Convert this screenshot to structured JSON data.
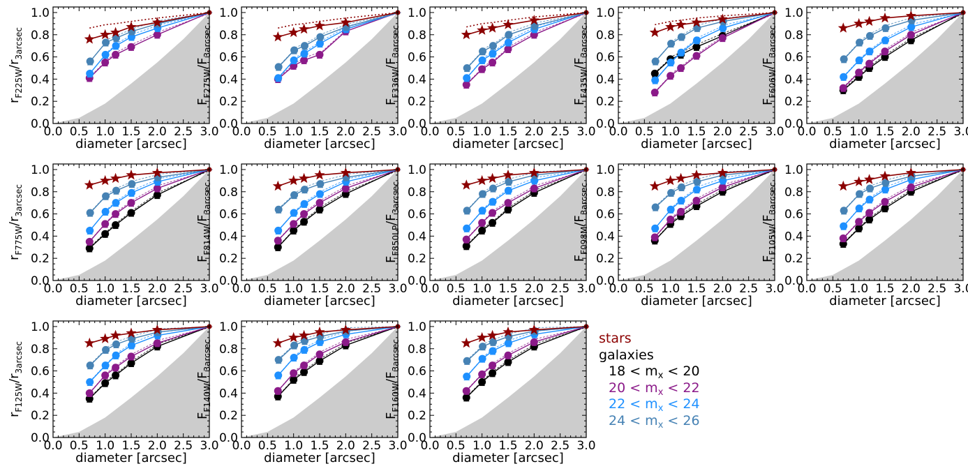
{
  "chart_data": {
    "type": "line",
    "x": [
      0.7,
      1.0,
      1.2,
      1.5,
      2.0,
      3.0
    ],
    "xlim": [
      0,
      3
    ],
    "ylim": [
      0,
      1.05
    ],
    "xticks": [
      "0.0",
      "0.5",
      "1.0",
      "1.5",
      "2.0",
      "2.5",
      "3.0"
    ],
    "yticks": [
      "0.0",
      "0.2",
      "0.4",
      "0.6",
      "0.8",
      "1.0"
    ],
    "xlabel": "diameter [arcsec]",
    "shade": {
      "x": [
        0,
        0.5,
        1.0,
        1.5,
        2.0,
        2.5,
        3.0
      ],
      "y": [
        0,
        0.05,
        0.18,
        0.36,
        0.55,
        0.76,
        1.0
      ]
    },
    "series_colors": {
      "stars": "#8b0000",
      "m18_20": "#000000",
      "m20_22": "#8b1a89",
      "m22_24": "#1e90ff",
      "m24_26": "#4682b4"
    },
    "panels": [
      {
        "filter": "F225W",
        "ylabel_prefix": "r",
        "ylabel_sub": "F225W",
        "ylabel_mid": "/r",
        "ylabel_sub2": "3arcsec",
        "stars": [
          0.76,
          0.8,
          0.82,
          0.87,
          0.91,
          1.0
        ],
        "stars_dotted": [
          0.86,
          0.89,
          0.9,
          0.92,
          0.95,
          1.0
        ],
        "m18_20": null,
        "m20_22": [
          0.41,
          0.55,
          0.62,
          0.69,
          0.8,
          1.0
        ],
        "m22_24": [
          0.45,
          0.62,
          0.7,
          0.78,
          0.86,
          1.0
        ],
        "m24_26": [
          0.56,
          0.73,
          0.77,
          0.83,
          0.9,
          1.0
        ]
      },
      {
        "filter": "F275W",
        "ylabel_prefix": "F",
        "ylabel_sub": "F275W",
        "ylabel_mid": "/F",
        "ylabel_sub2": "3arcsec",
        "stars": [
          0.78,
          0.82,
          0.85,
          0.88,
          0.91,
          1.0
        ],
        "stars_dotted": [
          0.86,
          0.89,
          0.9,
          0.92,
          0.95,
          1.0
        ],
        "m18_20": null,
        "m20_22": [
          0.4,
          0.52,
          0.57,
          0.62,
          0.83,
          1.0
        ],
        "m22_24": [
          0.41,
          0.57,
          0.63,
          0.72,
          0.85,
          1.0
        ],
        "m24_26": [
          0.51,
          0.66,
          0.7,
          0.78,
          0.87,
          1.0
        ]
      },
      {
        "filter": "F336W",
        "ylabel_prefix": "F",
        "ylabel_sub": "F336W",
        "ylabel_mid": "/F",
        "ylabel_sub2": "3arcsec",
        "stars": [
          0.8,
          0.84,
          0.86,
          0.89,
          0.93,
          1.0
        ],
        "stars_dotted": [
          0.87,
          0.9,
          0.91,
          0.93,
          0.96,
          1.0
        ],
        "m18_20": null,
        "m20_22": [
          0.35,
          0.49,
          0.55,
          0.67,
          0.8,
          1.0
        ],
        "m22_24": [
          0.41,
          0.57,
          0.63,
          0.73,
          0.85,
          1.0
        ],
        "m24_26": [
          0.5,
          0.65,
          0.7,
          0.8,
          0.88,
          1.0
        ]
      },
      {
        "filter": "F435W",
        "ylabel_prefix": "F",
        "ylabel_sub": "F435W",
        "ylabel_mid": "/F",
        "ylabel_sub2": "3arcsec",
        "stars": [
          0.82,
          0.87,
          0.89,
          0.91,
          0.94,
          1.0
        ],
        "stars_dotted": [
          0.89,
          0.92,
          0.93,
          0.95,
          0.97,
          1.0
        ],
        "m18_20": [
          0.45,
          0.58,
          0.62,
          0.69,
          0.79,
          1.0
        ],
        "m20_22": [
          0.28,
          0.43,
          0.5,
          0.61,
          0.77,
          1.0
        ],
        "m22_24": [
          0.39,
          0.55,
          0.64,
          0.75,
          0.86,
          1.0
        ],
        "m24_26": [
          0.56,
          0.72,
          0.78,
          0.86,
          0.92,
          1.0
        ]
      },
      {
        "filter": "F606W",
        "ylabel_prefix": "F",
        "ylabel_sub": "F606W",
        "ylabel_mid": "/F",
        "ylabel_sub2": "3arcsec",
        "stars": [
          0.86,
          0.9,
          0.92,
          0.95,
          0.97,
          1.0
        ],
        "stars_dotted": null,
        "m18_20": [
          0.3,
          0.42,
          0.5,
          0.6,
          0.75,
          1.0
        ],
        "m20_22": [
          0.32,
          0.46,
          0.54,
          0.65,
          0.8,
          1.0
        ],
        "m22_24": [
          0.42,
          0.57,
          0.65,
          0.75,
          0.87,
          1.0
        ],
        "m24_26": [
          0.58,
          0.73,
          0.79,
          0.86,
          0.93,
          1.0
        ]
      },
      {
        "filter": "F775W",
        "ylabel_prefix": "r",
        "ylabel_sub": "F775W",
        "ylabel_mid": "/r",
        "ylabel_sub2": "3arcsec",
        "stars": [
          0.86,
          0.9,
          0.92,
          0.95,
          0.97,
          1.0
        ],
        "stars_dotted": null,
        "m18_20": [
          0.29,
          0.42,
          0.5,
          0.61,
          0.77,
          1.0
        ],
        "m20_22": [
          0.35,
          0.51,
          0.6,
          0.7,
          0.83,
          1.0
        ],
        "m22_24": [
          0.45,
          0.62,
          0.7,
          0.79,
          0.89,
          1.0
        ],
        "m24_26": [
          0.61,
          0.76,
          0.81,
          0.87,
          0.93,
          1.0
        ]
      },
      {
        "filter": "F814W",
        "ylabel_prefix": "F",
        "ylabel_sub": "F814W",
        "ylabel_mid": "/F",
        "ylabel_sub2": "3arcsec",
        "stars": [
          0.85,
          0.9,
          0.92,
          0.95,
          0.97,
          1.0
        ],
        "stars_dotted": null,
        "m18_20": [
          0.3,
          0.45,
          0.53,
          0.64,
          0.78,
          1.0
        ],
        "m20_22": [
          0.36,
          0.51,
          0.6,
          0.7,
          0.83,
          1.0
        ],
        "m22_24": [
          0.45,
          0.61,
          0.69,
          0.78,
          0.89,
          1.0
        ],
        "m24_26": [
          0.64,
          0.77,
          0.82,
          0.87,
          0.93,
          1.0
        ]
      },
      {
        "filter": "F850LP",
        "ylabel_prefix": "F",
        "ylabel_sub": "F850LP",
        "ylabel_mid": "/F",
        "ylabel_sub2": "3arcsec",
        "stars": [
          0.86,
          0.9,
          0.92,
          0.95,
          0.97,
          1.0
        ],
        "stars_dotted": null,
        "m18_20": [
          0.31,
          0.45,
          0.52,
          0.64,
          0.79,
          1.0
        ],
        "m20_22": [
          0.37,
          0.52,
          0.61,
          0.7,
          0.83,
          1.0
        ],
        "m22_24": [
          0.47,
          0.63,
          0.71,
          0.81,
          0.9,
          1.0
        ],
        "m24_26": [
          0.63,
          0.78,
          0.83,
          0.89,
          0.95,
          1.0
        ]
      },
      {
        "filter": "F098M",
        "ylabel_prefix": "F",
        "ylabel_sub": "F098M",
        "ylabel_mid": "/F",
        "ylabel_sub2": "3arcsec",
        "stars": [
          0.85,
          0.9,
          0.92,
          0.95,
          0.97,
          1.0
        ],
        "stars_dotted": null,
        "m18_20": [
          0.36,
          0.51,
          0.58,
          0.67,
          0.8,
          1.0
        ],
        "m20_22": [
          0.39,
          0.55,
          0.62,
          0.72,
          0.84,
          1.0
        ],
        "m22_24": [
          0.47,
          0.64,
          0.72,
          0.82,
          0.9,
          1.0
        ],
        "m24_26": [
          0.66,
          0.79,
          0.84,
          0.89,
          0.95,
          1.0
        ]
      },
      {
        "filter": "F105W",
        "ylabel_prefix": "F",
        "ylabel_sub": "F105W",
        "ylabel_mid": "/F",
        "ylabel_sub2": "3arcsec",
        "stars": [
          0.85,
          0.89,
          0.91,
          0.94,
          0.97,
          1.0
        ],
        "stars_dotted": null,
        "m18_20": [
          0.33,
          0.47,
          0.55,
          0.65,
          0.8,
          1.0
        ],
        "m20_22": [
          0.38,
          0.53,
          0.61,
          0.71,
          0.84,
          1.0
        ],
        "m22_24": [
          0.49,
          0.65,
          0.73,
          0.82,
          0.91,
          1.0
        ],
        "m24_26": [
          0.63,
          0.78,
          0.83,
          0.88,
          0.94,
          1.0
        ]
      },
      {
        "filter": "F125W",
        "ylabel_prefix": "r",
        "ylabel_sub": "F125W",
        "ylabel_mid": "/r",
        "ylabel_sub2": "3arcsec",
        "stars": [
          0.85,
          0.89,
          0.92,
          0.94,
          0.97,
          1.0
        ],
        "stars_dotted": null,
        "m18_20": [
          0.35,
          0.49,
          0.56,
          0.67,
          0.82,
          1.0
        ],
        "m20_22": [
          0.4,
          0.56,
          0.63,
          0.73,
          0.85,
          1.0
        ],
        "m22_24": [
          0.5,
          0.65,
          0.74,
          0.83,
          0.92,
          1.0
        ],
        "m24_26": [
          0.65,
          0.79,
          0.84,
          0.89,
          0.95,
          1.0
        ]
      },
      {
        "filter": "F140W",
        "ylabel_prefix": "F",
        "ylabel_sub": "F140W",
        "ylabel_mid": "/F",
        "ylabel_sub2": "3arcsec",
        "stars": [
          0.85,
          0.9,
          0.92,
          0.95,
          0.97,
          1.0
        ],
        "stars_dotted": null,
        "m18_20": [
          0.37,
          0.52,
          0.59,
          0.69,
          0.83,
          1.0
        ],
        "m20_22": [
          0.42,
          0.58,
          0.65,
          0.75,
          0.86,
          1.0
        ],
        "m22_24": [
          0.56,
          0.72,
          0.79,
          0.86,
          0.93,
          1.0
        ],
        "m24_26": [
          0.7,
          0.83,
          0.87,
          0.91,
          0.96,
          1.0
        ]
      },
      {
        "filter": "F160W",
        "ylabel_prefix": "F",
        "ylabel_sub": "F160W",
        "ylabel_mid": "/F",
        "ylabel_sub2": "3arcsec",
        "stars": [
          0.85,
          0.9,
          0.92,
          0.95,
          0.97,
          1.0
        ],
        "stars_dotted": null,
        "m18_20": [
          0.36,
          0.5,
          0.58,
          0.68,
          0.82,
          1.0
        ],
        "m20_22": [
          0.42,
          0.57,
          0.65,
          0.74,
          0.86,
          1.0
        ],
        "m22_24": [
          0.55,
          0.71,
          0.78,
          0.85,
          0.93,
          1.0
        ],
        "m24_26": [
          0.69,
          0.82,
          0.86,
          0.91,
          0.96,
          1.0
        ]
      }
    ]
  },
  "legend": {
    "stars": "stars",
    "galaxies": "galaxies",
    "bins": [
      {
        "key": "m18_20",
        "lo": "18 < m",
        "sub": "x",
        "hi": " < 20"
      },
      {
        "key": "m20_22",
        "lo": "20 < m",
        "sub": "x",
        "hi": " < 22"
      },
      {
        "key": "m22_24",
        "lo": "22 < m",
        "sub": "x",
        "hi": " < 24"
      },
      {
        "key": "m24_26",
        "lo": "24 < m",
        "sub": "x",
        "hi": " < 26"
      }
    ]
  }
}
